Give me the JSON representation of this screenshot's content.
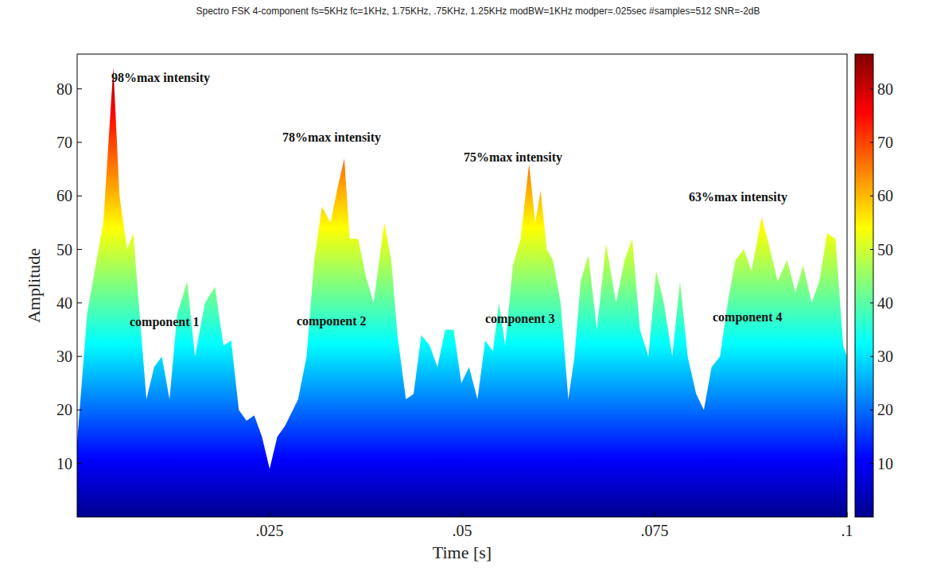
{
  "chart_data": {
    "type": "area",
    "title": "Spectro FSK 4-component fs=5KHz fc=1KHz, 1.75KHz, .75KHz, 1.25KHz modBW=1KHz modper=.025sec #samples=512 SNR=-2dB",
    "x_label": "Time [s]",
    "y_label": "Amplitude",
    "annotations": [
      "98%max intensity",
      "component 1",
      "78%max intensity",
      "component 2",
      "75%max intensity",
      "component 3",
      "63%max intensity",
      "component 4"
    ],
    "x": [
      0,
      0.0013,
      0.0024,
      0.0034,
      0.0047,
      0.0055,
      0.0065,
      0.0073,
      0.008,
      0.009,
      0.01,
      0.011,
      0.012,
      0.013,
      0.0143,
      0.0153,
      0.0166,
      0.0179,
      0.019,
      0.02,
      0.021,
      0.022,
      0.023,
      0.024,
      0.025,
      0.026,
      0.027,
      0.0287,
      0.0298,
      0.0308,
      0.0318,
      0.0329,
      0.0339,
      0.0347,
      0.0354,
      0.0365,
      0.0375,
      0.0385,
      0.0399,
      0.0408,
      0.0416,
      0.0427,
      0.0437,
      0.0447,
      0.0458,
      0.0468,
      0.0478,
      0.0489,
      0.0499,
      0.0509,
      0.052,
      0.053,
      0.054,
      0.0548,
      0.0556,
      0.0566,
      0.0576,
      0.0587,
      0.0595,
      0.0602,
      0.061,
      0.0618,
      0.0628,
      0.0638,
      0.0646,
      0.0654,
      0.0664,
      0.0675,
      0.0687,
      0.07,
      0.0711,
      0.0721,
      0.0731,
      0.0742,
      0.0752,
      0.0762,
      0.0773,
      0.0783,
      0.0793,
      0.0804,
      0.0814,
      0.0824,
      0.0835,
      0.0845,
      0.0855,
      0.0866,
      0.0876,
      0.0889,
      0.09,
      0.091,
      0.0922,
      0.0933,
      0.0943,
      0.0954,
      0.0964,
      0.0974,
      0.0985,
      0.0995,
      0.1
    ],
    "values": [
      14,
      38,
      47,
      55,
      84,
      60,
      50,
      53,
      40,
      22,
      28,
      30,
      22,
      38,
      44,
      30,
      40,
      43,
      32,
      33,
      20,
      18,
      19,
      15,
      9,
      15,
      17,
      22,
      30,
      48,
      58,
      55,
      62,
      67,
      52,
      52,
      45,
      40,
      55,
      48,
      34,
      22,
      23,
      34,
      32,
      28,
      35,
      35,
      25,
      28,
      22,
      33,
      31,
      40,
      32,
      47,
      52,
      66,
      55,
      61,
      50,
      48,
      40,
      22,
      30,
      44,
      49,
      35,
      51,
      40,
      48,
      52,
      35,
      30,
      46,
      40,
      30,
      44,
      30,
      23,
      20,
      28,
      30,
      40,
      48,
      50,
      46,
      56,
      50,
      44,
      48,
      42,
      47,
      40,
      44,
      53,
      52,
      32,
      30
    ],
    "xlim": [
      0,
      0.1
    ],
    "xticks": [
      {
        "value": 0.025,
        "label": ".025"
      },
      {
        "value": 0.05,
        "label": ".05"
      },
      {
        "value": 0.075,
        "label": ".075"
      },
      {
        "value": 0.1,
        "label": ".1"
      }
    ],
    "ylim": [
      0,
      86.5
    ],
    "yticks": [
      10,
      20,
      30,
      40,
      50,
      60,
      70,
      80
    ],
    "colorbar": {
      "range": [
        0,
        86.5
      ],
      "ticks": [
        10,
        20,
        30,
        40,
        50,
        60,
        70,
        80
      ]
    }
  }
}
